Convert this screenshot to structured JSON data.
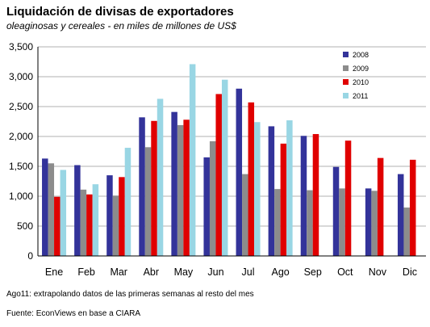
{
  "title": "Liquidación de divisas de exportadores",
  "subtitle": "oleaginosas y cereales - en miles de millones de US$",
  "note": "Ago11: extrapolando  datos de las primeras semanas al resto del mes",
  "source": "Fuente: EconViews  en base a CIARA",
  "chart_data": {
    "type": "bar",
    "categories": [
      "Ene",
      "Feb",
      "Mar",
      "Abr",
      "May",
      "Jun",
      "Jul",
      "Ago",
      "Sep",
      "Oct",
      "Nov",
      "Dic"
    ],
    "y_ticks": [
      "0",
      "500",
      "1,000",
      "1,500",
      "2,000",
      "2,500",
      "3,000",
      "3,500"
    ],
    "ylim": [
      0,
      3500
    ],
    "legend_position": "top-right",
    "grid": true,
    "series": [
      {
        "name": "2008",
        "color": "#33339a",
        "values": [
          1630,
          1520,
          1350,
          2320,
          2410,
          1650,
          2800,
          2170,
          2010,
          1490,
          1130,
          1370
        ]
      },
      {
        "name": "2009",
        "color": "#8c8c8c",
        "values": [
          1550,
          1110,
          1010,
          1820,
          2190,
          1920,
          1370,
          1120,
          1100,
          1130,
          1090,
          810
        ]
      },
      {
        "name": "2010",
        "color": "#e00000",
        "values": [
          990,
          1030,
          1320,
          2260,
          2280,
          2710,
          2570,
          1880,
          2040,
          1930,
          1640,
          1610
        ]
      },
      {
        "name": "2011",
        "color": "#99d6e4",
        "values": [
          1440,
          1200,
          1810,
          2630,
          3210,
          2950,
          2240,
          2270,
          null,
          null,
          null,
          null
        ]
      }
    ]
  }
}
